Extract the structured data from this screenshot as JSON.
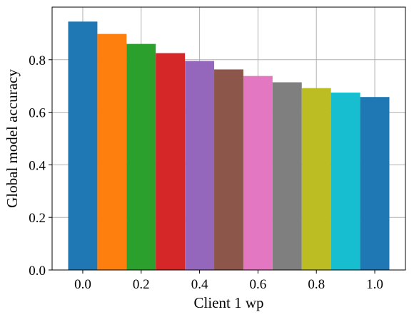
{
  "chart_data": {
    "type": "bar",
    "x": [
      0.0,
      0.1,
      0.2,
      0.3,
      0.4,
      0.5,
      0.6,
      0.7,
      0.8,
      0.9,
      1.0
    ],
    "values": [
      0.945,
      0.898,
      0.86,
      0.825,
      0.795,
      0.763,
      0.738,
      0.714,
      0.692,
      0.675,
      0.658
    ],
    "colors": [
      "#1f77b4",
      "#ff7f0e",
      "#2ca02c",
      "#d62728",
      "#9467bd",
      "#8c564b",
      "#e377c2",
      "#7f7f7f",
      "#bcbd22",
      "#17becf",
      "#1f77b4"
    ],
    "xlabel": "Client 1 wp",
    "ylabel": "Global model accuracy",
    "xlim": [
      -0.105,
      1.105
    ],
    "ylim": [
      0.0,
      1.0
    ],
    "xticks": [
      0.0,
      0.2,
      0.4,
      0.6,
      0.8,
      1.0
    ],
    "xtick_labels": [
      "0.0",
      "0.2",
      "0.4",
      "0.6",
      "0.8",
      "1.0"
    ],
    "yticks": [
      0.0,
      0.2,
      0.4,
      0.6,
      0.8
    ],
    "ytick_labels": [
      "0.0",
      "0.2",
      "0.4",
      "0.6",
      "0.8"
    ],
    "grid": true
  }
}
